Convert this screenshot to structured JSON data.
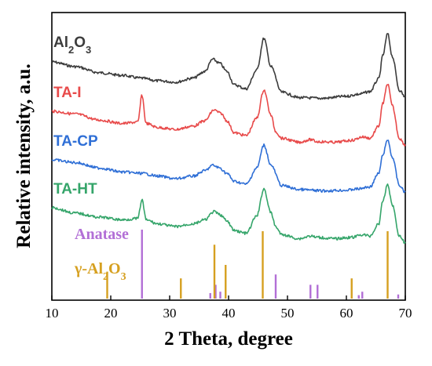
{
  "chart_data": {
    "type": "line",
    "xlabel": "2 Theta, degree",
    "ylabel": "Relative intensity, a.u.",
    "xlim": [
      10,
      70
    ],
    "xticks": [
      "10",
      "20",
      "30",
      "40",
      "50",
      "60",
      "70"
    ],
    "grid": false,
    "series": [
      {
        "name": "Al2O3",
        "label_parts": [
          "Al",
          "2",
          "O",
          "3"
        ],
        "color": "#3c3c3c",
        "x": [
          10,
          14,
          18,
          22,
          25,
          28,
          31,
          34,
          36,
          37.3,
          38.5,
          39.7,
          41,
          43,
          44.8,
          46,
          47.2,
          49,
          52,
          56,
          60,
          62,
          64,
          65.5,
          66.2,
          67,
          67.8,
          69,
          70
        ],
        "y": [
          100,
          93,
          84,
          80,
          76,
          72,
          70,
          76,
          86,
          104,
          98,
          86,
          66,
          60,
          88,
          135,
          93,
          55,
          47,
          46,
          49,
          52,
          56,
          75,
          110,
          142,
          108,
          58,
          48
        ]
      },
      {
        "name": "TA-I",
        "color": "#e84a4a",
        "x": [
          10,
          14,
          18,
          22,
          24.6,
          25.3,
          26,
          28,
          31,
          34,
          36,
          37.5,
          38.7,
          39.7,
          41,
          43,
          44.8,
          46,
          47.2,
          48,
          49,
          52,
          53.9,
          55,
          58,
          61,
          62.7,
          64,
          65.5,
          66.2,
          67,
          67.8,
          69,
          70
        ],
        "y": [
          100,
          96,
          87,
          82,
          84,
          124,
          82,
          76,
          73,
          78,
          86,
          102,
          97,
          86,
          68,
          64,
          90,
          132,
          94,
          70,
          60,
          54,
          58,
          55,
          54,
          57,
          62,
          60,
          78,
          112,
          141,
          108,
          60,
          50
        ]
      },
      {
        "name": "TA-CP",
        "color": "#2f6fd6",
        "x": [
          10,
          14,
          18,
          22,
          25.3,
          28,
          31,
          34,
          36,
          37.3,
          38.5,
          39.7,
          41,
          43,
          44.8,
          46,
          47.2,
          49,
          52,
          56,
          60,
          62,
          64,
          65.5,
          66.2,
          67,
          67.8,
          69,
          70
        ],
        "y": [
          100,
          96,
          88,
          82,
          80,
          76,
          72,
          76,
          84,
          92,
          88,
          80,
          68,
          64,
          88,
          122,
          92,
          62,
          56,
          54,
          55,
          57,
          60,
          80,
          108,
          130,
          104,
          62,
          52
        ]
      },
      {
        "name": "TA-HT",
        "color": "#35a56a",
        "x": [
          10,
          14,
          18,
          22,
          24.6,
          25.3,
          26,
          28,
          31,
          34,
          36,
          37.5,
          38.7,
          39.7,
          41,
          43,
          44.8,
          46,
          47.2,
          48,
          49,
          52,
          53.9,
          55,
          58,
          61,
          62.7,
          64,
          65.5,
          66.2,
          67,
          67.8,
          69,
          70
        ],
        "y": [
          100,
          92,
          86,
          82,
          84,
          112,
          82,
          76,
          72,
          76,
          82,
          94,
          89,
          80,
          66,
          62,
          88,
          128,
          92,
          72,
          60,
          54,
          58,
          56,
          54,
          56,
          60,
          58,
          76,
          110,
          135,
          104,
          58,
          48
        ]
      }
    ],
    "reference_patterns": [
      {
        "name": "Anatase",
        "color": "#b26fd6",
        "x": [
          25.3,
          36.9,
          37.8,
          38.6,
          48.0,
          53.9,
          55.1,
          62.1,
          62.7,
          68.8
        ],
        "y": [
          100,
          8,
          20,
          10,
          35,
          20,
          20,
          5,
          10,
          6
        ]
      },
      {
        "name": "γ-Al2O3",
        "label_parts": [
          "γ-Al",
          "2",
          "O",
          "3"
        ],
        "color": "#d6a020",
        "x": [
          19.4,
          31.9,
          37.6,
          39.5,
          45.8,
          60.9,
          67.0
        ],
        "y": [
          40,
          30,
          80,
          50,
          100,
          30,
          100
        ]
      }
    ]
  }
}
